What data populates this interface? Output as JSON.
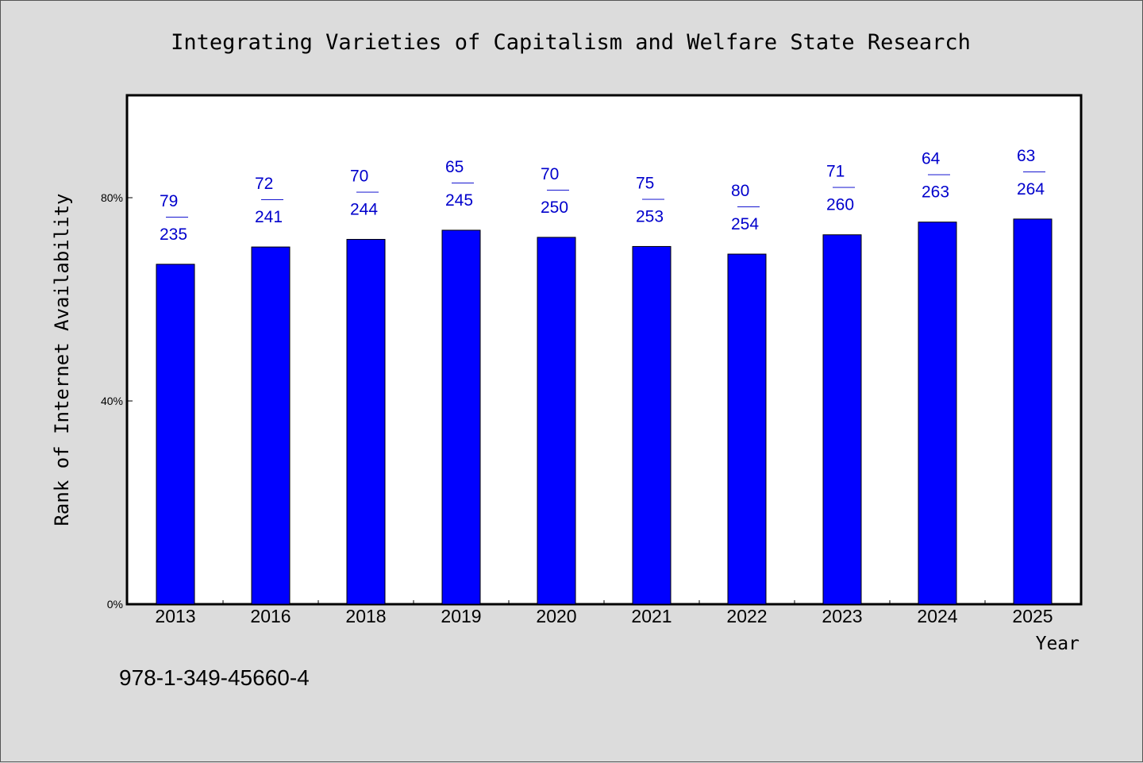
{
  "chart_data": {
    "type": "bar",
    "title": "Integrating Varieties of Capitalism and Welfare State Research",
    "xlabel": "Year",
    "ylabel": "Rank of Internet Availability",
    "categories": [
      "2013",
      "2016",
      "2018",
      "2019",
      "2020",
      "2021",
      "2022",
      "2023",
      "2024",
      "2025"
    ],
    "values": [
      66.9,
      70.3,
      71.8,
      73.6,
      72.2,
      70.4,
      68.9,
      72.7,
      75.2,
      75.8
    ],
    "ylim": [
      0,
      100
    ],
    "yticks": [
      {
        "value": 0,
        "label": "0%"
      },
      {
        "value": 40,
        "label": "40%"
      },
      {
        "value": 80,
        "label": "80%"
      }
    ],
    "data_labels": [
      {
        "rank": "79",
        "sep": "——",
        "total": "235"
      },
      {
        "rank": "72",
        "sep": "——",
        "total": "241"
      },
      {
        "rank": "70",
        "sep": "——",
        "total": "244"
      },
      {
        "rank": "65",
        "sep": "——",
        "total": "245"
      },
      {
        "rank": "70",
        "sep": "——",
        "total": "250"
      },
      {
        "rank": "75",
        "sep": "——",
        "total": "253"
      },
      {
        "rank": "80",
        "sep": "——",
        "total": "254"
      },
      {
        "rank": "71",
        "sep": "——",
        "total": "260"
      },
      {
        "rank": "64",
        "sep": "——",
        "total": "263"
      },
      {
        "rank": "63",
        "sep": "——",
        "total": "264"
      }
    ],
    "bar_color": "#0000ff",
    "label_color": "#0000cc",
    "grid": false,
    "legend": "none"
  },
  "footer": {
    "isbn": "978-1-349-45660-4"
  },
  "colors": {
    "background": "#dcdcdc",
    "plot_background": "#ffffff",
    "axis": "#000000"
  }
}
